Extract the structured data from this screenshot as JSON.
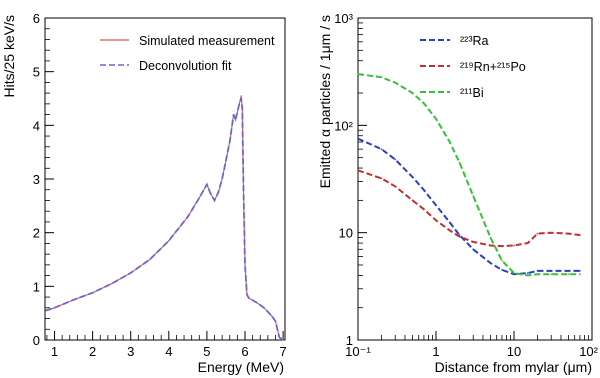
{
  "chart_data": [
    {
      "type": "line",
      "xlabel": "Energy (MeV)",
      "ylabel": "Hits/25 keV/s",
      "xlim": [
        0.75,
        7.05
      ],
      "ylim": [
        0,
        6
      ],
      "x_ticks": [
        "1",
        "2",
        "3",
        "4",
        "5",
        "6",
        "7"
      ],
      "y_ticks": [
        "0",
        "1",
        "2",
        "3",
        "4",
        "5",
        "6"
      ],
      "legend_position": "top-right",
      "series": [
        {
          "name": "Simulated measurement",
          "color": "#e8554e",
          "style": "solid",
          "x": [
            0.78,
            1.0,
            1.5,
            2.0,
            2.5,
            3.0,
            3.5,
            4.0,
            4.5,
            4.8,
            5.0,
            5.1,
            5.2,
            5.3,
            5.4,
            5.5,
            5.6,
            5.7,
            5.75,
            5.8,
            5.85,
            5.9,
            5.93,
            5.96,
            6.0,
            6.05,
            6.1,
            6.3,
            6.5,
            6.7,
            6.8,
            6.85,
            6.9,
            7.0
          ],
          "y": [
            0.55,
            0.6,
            0.75,
            0.88,
            1.05,
            1.25,
            1.5,
            1.85,
            2.3,
            2.65,
            2.9,
            2.72,
            2.6,
            2.75,
            3.0,
            3.35,
            3.7,
            4.2,
            4.1,
            4.25,
            4.4,
            4.55,
            4.3,
            2.8,
            1.4,
            0.85,
            0.78,
            0.7,
            0.6,
            0.45,
            0.35,
            0.2,
            0.05,
            0.0
          ]
        },
        {
          "name": "Deconvolution fit",
          "color": "#6666dd",
          "style": "dashed",
          "x": [
            0.78,
            1.0,
            1.5,
            2.0,
            2.5,
            3.0,
            3.5,
            4.0,
            4.5,
            4.8,
            5.0,
            5.1,
            5.2,
            5.3,
            5.4,
            5.5,
            5.6,
            5.7,
            5.75,
            5.8,
            5.85,
            5.9,
            5.93,
            5.96,
            6.0,
            6.05,
            6.1,
            6.3,
            6.5,
            6.7,
            6.8,
            6.85,
            6.9,
            7.0
          ],
          "y": [
            0.55,
            0.6,
            0.75,
            0.88,
            1.05,
            1.25,
            1.5,
            1.85,
            2.3,
            2.65,
            2.9,
            2.72,
            2.6,
            2.75,
            3.0,
            3.35,
            3.7,
            4.2,
            4.1,
            4.25,
            4.4,
            4.5,
            4.3,
            2.8,
            1.4,
            0.85,
            0.78,
            0.7,
            0.6,
            0.45,
            0.35,
            0.2,
            0.05,
            0.0
          ]
        }
      ]
    },
    {
      "type": "line",
      "xlabel": "Distance from mylar (μm)",
      "ylabel": "Emitted α particles / 1μm / s",
      "xscale": "log",
      "yscale": "log",
      "xlim": [
        0.1,
        100
      ],
      "ylim": [
        1,
        1000
      ],
      "x_ticks": [
        "10⁻¹",
        "1",
        "10",
        "10²"
      ],
      "y_ticks": [
        "1",
        "10",
        "10²",
        "10³"
      ],
      "legend_position": "top-right",
      "series": [
        {
          "name": "²²³Ra",
          "color": "#2b3fbf",
          "style": "dashed",
          "x": [
            0.1,
            0.2,
            0.3,
            0.5,
            0.7,
            1,
            1.5,
            2,
            3,
            5,
            7,
            10,
            15,
            20,
            30,
            50,
            70
          ],
          "y": [
            75,
            60,
            48,
            33,
            25,
            18,
            12.5,
            9.5,
            7,
            5.2,
            4.5,
            4.1,
            4.2,
            4.4,
            4.4,
            4.4,
            4.4
          ]
        },
        {
          "name": "²¹⁹Rn+²¹⁵Po",
          "color": "#c22f2f",
          "style": "dashed",
          "x": [
            0.1,
            0.2,
            0.3,
            0.5,
            0.7,
            1,
            1.5,
            2,
            3,
            5,
            7,
            10,
            15,
            20,
            30,
            50,
            70
          ],
          "y": [
            38,
            32,
            27,
            20,
            16.5,
            13,
            10.5,
            9.2,
            8.2,
            7.6,
            7.5,
            7.6,
            8.0,
            9.8,
            10.0,
            9.8,
            9.5
          ]
        },
        {
          "name": "²¹¹Bi",
          "color": "#34c234",
          "style": "dashed",
          "x": [
            0.1,
            0.2,
            0.3,
            0.5,
            0.7,
            1,
            1.5,
            2,
            3,
            5,
            7,
            10,
            15,
            20,
            30,
            50,
            70
          ],
          "y": [
            300,
            280,
            250,
            200,
            160,
            115,
            70,
            45,
            22,
            9,
            5.5,
            4.2,
            4.0,
            4.1,
            4.1,
            4.1,
            4.1
          ]
        }
      ]
    }
  ]
}
